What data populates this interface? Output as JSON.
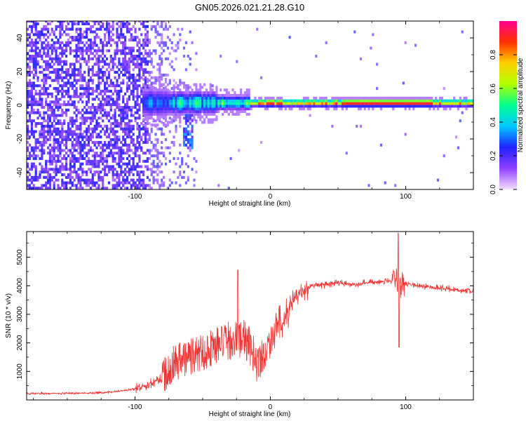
{
  "title": "GN05.2026.021.21.28.G10",
  "chart_data": [
    {
      "type": "heatmap",
      "title": "GN05.2026.021.21.28.G10",
      "xlabel": "Height of straight line (km)",
      "ylabel": "Frequency (Hz)",
      "xlim": [
        -180,
        150
      ],
      "ylim": [
        -50,
        50
      ],
      "xticks": [
        -100,
        0,
        100
      ],
      "xtick_labels": [
        "-100",
        "0",
        "100"
      ],
      "yticks": [
        -40,
        -20,
        0,
        20,
        40
      ],
      "ytick_labels": [
        "-40",
        "-20",
        "0",
        "20",
        "40"
      ],
      "colorbar": {
        "label": "Normalized spectral amplitude",
        "range": [
          0.0,
          1.0
        ],
        "ticks": [
          0.0,
          0.2,
          0.4,
          0.6,
          0.8
        ],
        "tick_labels": [
          "0.0",
          "0.2",
          "0.4",
          "0.6",
          "0.8"
        ],
        "colors": [
          "#f4e0ff",
          "#9040ff",
          "#2020ff",
          "#00c8ff",
          "#00ff90",
          "#b0ff00",
          "#ffd000",
          "#ff3000",
          "#ff0090"
        ]
      },
      "features": {
        "noise_region_x": [
          -180,
          -55
        ],
        "signal_band_center_hz": 1.5,
        "strong_signal_start_km": -15
      }
    },
    {
      "type": "line",
      "xlabel": "Height of straight line (km)",
      "ylabel": "SNR (10 * v/v)",
      "xlim": [
        -180,
        150
      ],
      "ylim": [
        0,
        5900
      ],
      "xticks": [
        -100,
        0,
        100
      ],
      "xtick_labels": [
        "-100",
        "0",
        "100"
      ],
      "yticks": [
        1000,
        2000,
        3000,
        4000,
        5000
      ],
      "ytick_labels": [
        "1000",
        "2000",
        "3000",
        "4000",
        "5000"
      ],
      "color": "#ee3333",
      "series": [
        {
          "name": "SNR",
          "x": [
            -180,
            -150,
            -120,
            -100,
            -90,
            -80,
            -72,
            -60,
            -50,
            -40,
            -30,
            -20,
            -15,
            -10,
            -5,
            0,
            5,
            10,
            15,
            20,
            30,
            40,
            50,
            60,
            70,
            80,
            90,
            93,
            96,
            100,
            110,
            120,
            130,
            140,
            150
          ],
          "values": [
            220,
            230,
            260,
            380,
            560,
            760,
            1250,
            1450,
            1600,
            1850,
            2000,
            2100,
            1800,
            1250,
            1500,
            2000,
            2500,
            2800,
            3300,
            3700,
            4000,
            4050,
            4100,
            4050,
            4100,
            4150,
            4150,
            4200,
            4000,
            4050,
            4000,
            3950,
            3900,
            3850,
            3800
          ]
        }
      ],
      "annotations": [
        {
          "x": -25,
          "value": 4550,
          "label": "spike"
        },
        {
          "x": 95,
          "value": 5850,
          "label": "spike max"
        },
        {
          "x": 95,
          "value": 1850,
          "label": "spike min"
        }
      ]
    }
  ]
}
